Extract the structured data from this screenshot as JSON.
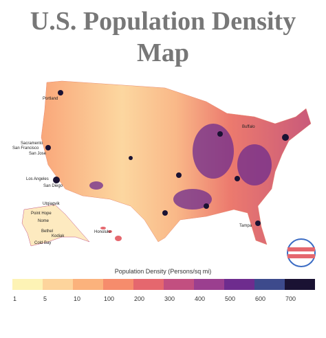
{
  "title": "U.S. Population Density Map",
  "cities": [
    "Portland",
    "Sacramento",
    "San Francisco",
    "San Jose",
    "Los Angeles",
    "San Diego",
    "Buffalo",
    "Tampa",
    "Honolulu",
    "Utqiagvik",
    "Point Hope",
    "Nome",
    "Bethel",
    "Kodiak",
    "Cold Bay"
  ],
  "legend": {
    "title": "Population Density (Persons/sq mi)",
    "ticks": [
      1,
      5,
      10,
      100,
      200,
      300,
      400,
      500,
      600,
      700
    ],
    "colors": [
      "#fdf3b5",
      "#fdd49c",
      "#fbb27c",
      "#f68c6c",
      "#e5676e",
      "#c24f80",
      "#9b3f8f",
      "#6e2c8e",
      "#3d4a8c",
      "#1a1233"
    ]
  }
}
